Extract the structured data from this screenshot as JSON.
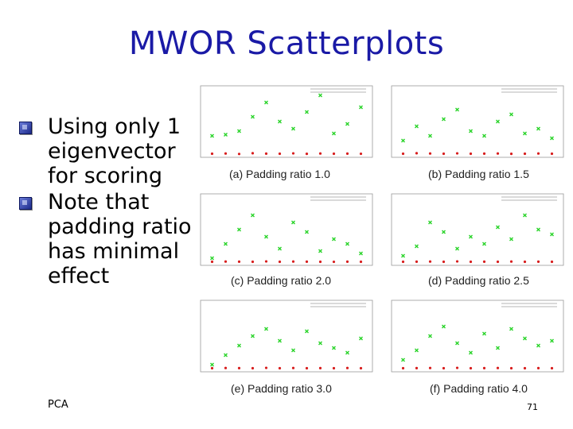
{
  "slide": {
    "title": "MWOR Scatterplots",
    "bullets": [
      "Using only 1 eigenvector for scoring",
      "Note that padding ratio has minimal effect"
    ],
    "footer": "PCA",
    "page_number": "71"
  },
  "colors": {
    "title": "#1a1aa6",
    "series_green": "#2bd42b",
    "series_red": "#d81e1e"
  },
  "figure": {
    "panels": [
      {
        "caption": "(a) Padding ratio 1.0"
      },
      {
        "caption": "(b) Padding ratio 1.5"
      },
      {
        "caption": "(c) Padding ratio 2.0"
      },
      {
        "caption": "(d) Padding ratio 2.5"
      },
      {
        "caption": "(e) Padding ratio 3.0"
      },
      {
        "caption": "(f) Padding ratio 4.0"
      }
    ]
  },
  "chart_data": [
    {
      "type": "scatter",
      "title": "(a) Padding ratio 1.0",
      "series": [
        {
          "values": [
            900,
            950,
            1100,
            1700,
            2300,
            1500,
            1200,
            1900,
            2600,
            1000,
            1400,
            2100
          ]
        },
        {
          "values": [
            150,
            160,
            140,
            170,
            155,
            150,
            165,
            145,
            160,
            150,
            155,
            148
          ]
        }
      ]
    },
    {
      "type": "scatter",
      "title": "(b) Padding ratio 1.5",
      "series": [
        {
          "values": [
            700,
            1300,
            900,
            1600,
            2000,
            1100,
            900,
            1500,
            1800,
            1000,
            1200,
            800
          ]
        },
        {
          "values": [
            150,
            170,
            160,
            150,
            165,
            150,
            155,
            160,
            145,
            150,
            160,
            150
          ]
        }
      ]
    },
    {
      "type": "scatter",
      "title": "(c) Padding ratio 2.0",
      "series": [
        {
          "values": [
            300,
            900,
            1500,
            2100,
            1200,
            700,
            1800,
            1400,
            600,
            1100,
            900,
            500
          ]
        },
        {
          "values": [
            150,
            160,
            155,
            150,
            165,
            150,
            160,
            155,
            150,
            148,
            155,
            150
          ]
        }
      ]
    },
    {
      "type": "scatter",
      "title": "(d) Padding ratio 2.5",
      "series": [
        {
          "values": [
            400,
            800,
            1800,
            1400,
            700,
            1200,
            900,
            1600,
            1100,
            2100,
            1500,
            1300
          ]
        },
        {
          "values": [
            150,
            155,
            160,
            150,
            165,
            150,
            155,
            150,
            160,
            150,
            155,
            150
          ]
        }
      ]
    },
    {
      "type": "scatter",
      "title": "(e) Padding ratio 3.0",
      "series": [
        {
          "values": [
            300,
            700,
            1100,
            1500,
            1800,
            1300,
            900,
            1700,
            1200,
            1000,
            800,
            1400
          ]
        },
        {
          "values": [
            150,
            160,
            155,
            150,
            165,
            150,
            160,
            150,
            155,
            150,
            160,
            150
          ]
        }
      ]
    },
    {
      "type": "scatter",
      "title": "(f) Padding ratio 4.0",
      "series": [
        {
          "values": [
            500,
            900,
            1500,
            1900,
            1200,
            800,
            1600,
            1000,
            1800,
            1400,
            1100,
            1300
          ]
        },
        {
          "values": [
            150,
            155,
            160,
            150,
            165,
            150,
            155,
            160,
            150,
            150,
            155,
            150
          ]
        }
      ]
    }
  ]
}
